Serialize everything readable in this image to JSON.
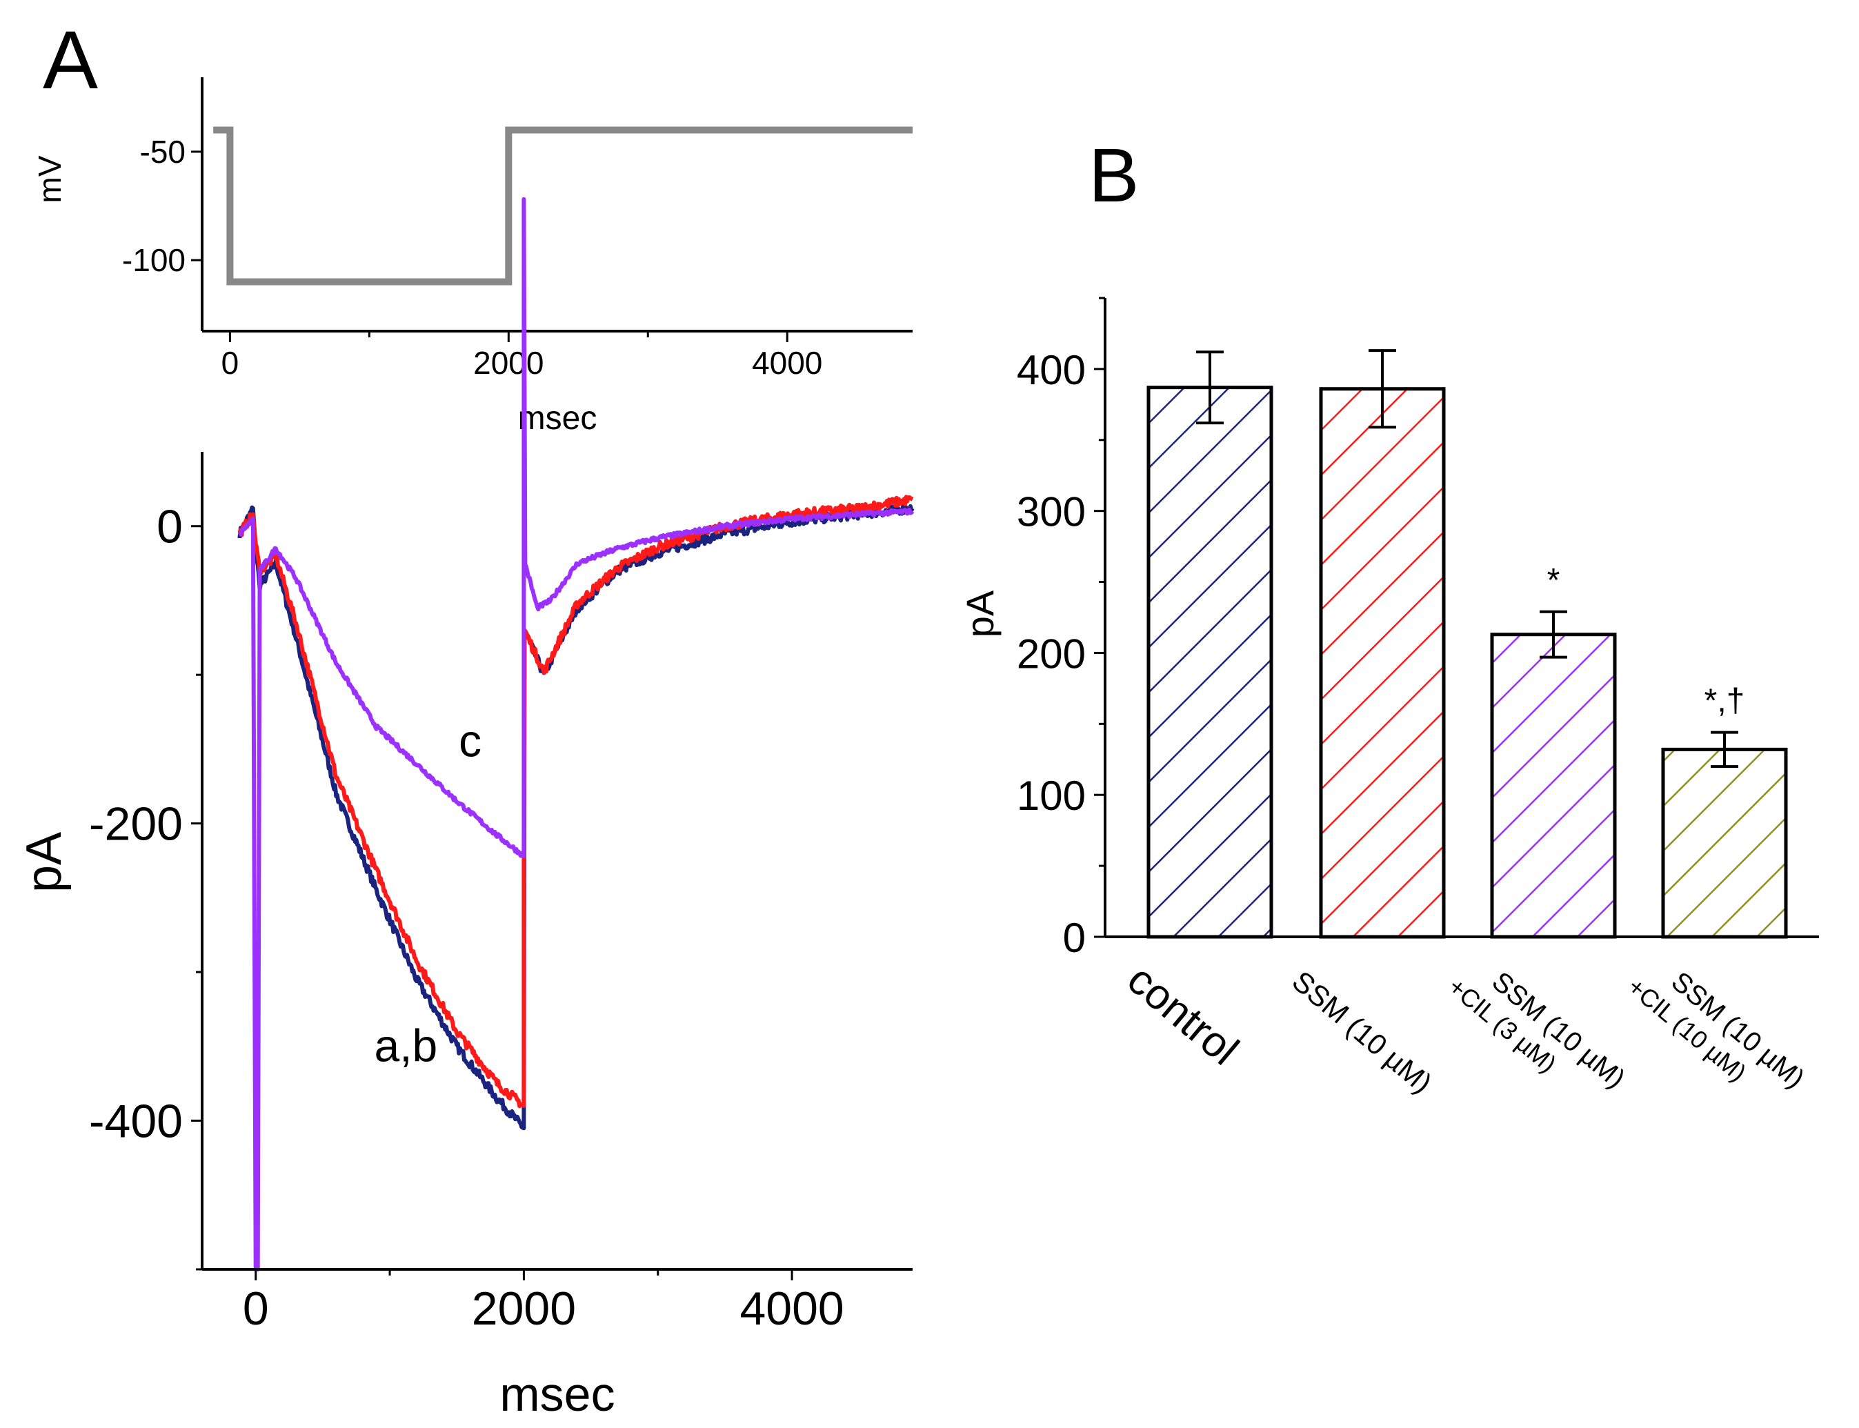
{
  "panels": {
    "a_label": "A",
    "b_label": "B"
  },
  "colors": {
    "protocol": "#888888",
    "control": "#1a237e",
    "ssm": "#ff1a1a",
    "ssm_cil3": "#9b30ff",
    "ssm_cil10": "#8f8f1f",
    "axis": "#000000"
  },
  "chart_data": [
    {
      "id": "protocol",
      "type": "line",
      "title": "",
      "xlabel": "msec",
      "ylabel": "mV",
      "xlim": [
        -200,
        4900
      ],
      "ylim": [
        -120,
        -30
      ],
      "xticks": [
        0,
        2000,
        4000
      ],
      "yticks": [
        -50,
        -100
      ],
      "series": [
        {
          "color_key": "protocol",
          "points": [
            [
              -120,
              -40
            ],
            [
              0,
              -40
            ],
            [
              0,
              -110
            ],
            [
              2000,
              -110
            ],
            [
              2000,
              -40
            ],
            [
              4900,
              -40
            ]
          ]
        }
      ]
    },
    {
      "id": "currents",
      "type": "line",
      "title": "",
      "xlabel": "msec",
      "ylabel": "pA",
      "xlim": [
        -400,
        4900
      ],
      "ylim": [
        -500,
        50
      ],
      "xticks": [
        0,
        2000,
        4000
      ],
      "yticks": [
        0,
        -200,
        -400
      ],
      "annotations": [
        {
          "text": "c",
          "x": 1600,
          "y": -155
        },
        {
          "text": "a,b",
          "x": 1120,
          "y": -360
        }
      ],
      "series": [
        {
          "label": "a",
          "color_key": "control",
          "noise": 6,
          "points": [
            [
              -120,
              -5
            ],
            [
              -20,
              12
            ],
            [
              0,
              -15
            ],
            [
              30,
              -40
            ],
            [
              150,
              -25
            ],
            [
              300,
              -75
            ],
            [
              600,
              -180
            ],
            [
              900,
              -245
            ],
            [
              1200,
              -305
            ],
            [
              1500,
              -350
            ],
            [
              1800,
              -385
            ],
            [
              2000,
              -405
            ],
            [
              2005,
              -70
            ],
            [
              2150,
              -100
            ],
            [
              2400,
              -55
            ],
            [
              2700,
              -30
            ],
            [
              3000,
              -18
            ],
            [
              3500,
              -5
            ],
            [
              4000,
              3
            ],
            [
              4500,
              8
            ],
            [
              4900,
              12
            ]
          ]
        },
        {
          "label": "b",
          "color_key": "ssm",
          "noise": 6,
          "points": [
            [
              -120,
              -5
            ],
            [
              -20,
              8
            ],
            [
              0,
              -12
            ],
            [
              30,
              -30
            ],
            [
              150,
              -20
            ],
            [
              300,
              -65
            ],
            [
              600,
              -168
            ],
            [
              900,
              -232
            ],
            [
              1200,
              -292
            ],
            [
              1500,
              -340
            ],
            [
              1800,
              -375
            ],
            [
              2000,
              -390
            ],
            [
              2000,
              -225
            ],
            [
              2005,
              -70
            ],
            [
              2150,
              -98
            ],
            [
              2400,
              -52
            ],
            [
              2700,
              -28
            ],
            [
              3000,
              -14
            ],
            [
              3500,
              0
            ],
            [
              4000,
              8
            ],
            [
              4500,
              12
            ],
            [
              4900,
              18
            ]
          ]
        },
        {
          "label": "c",
          "color_key": "ssm_cil3",
          "noise": 3,
          "points": [
            [
              -120,
              -5
            ],
            [
              -20,
              5
            ],
            [
              0,
              -500
            ],
            [
              15,
              -500
            ],
            [
              30,
              -30
            ],
            [
              150,
              -15
            ],
            [
              300,
              -35
            ],
            [
              600,
              -92
            ],
            [
              900,
              -135
            ],
            [
              1200,
              -160
            ],
            [
              1500,
              -185
            ],
            [
              1800,
              -208
            ],
            [
              2000,
              -222
            ],
            [
              2000,
              220
            ],
            [
              2010,
              -25
            ],
            [
              2100,
              -55
            ],
            [
              2200,
              -50
            ],
            [
              2400,
              -25
            ],
            [
              2700,
              -15
            ],
            [
              3000,
              -8
            ],
            [
              3500,
              0
            ],
            [
              4000,
              5
            ],
            [
              4500,
              8
            ],
            [
              4900,
              10
            ]
          ]
        }
      ]
    },
    {
      "id": "summary",
      "type": "bar",
      "title": "",
      "xlabel": "",
      "ylabel": "pA",
      "ylim": [
        0,
        450
      ],
      "yticks": [
        0,
        100,
        200,
        300,
        400
      ],
      "categories": [
        {
          "lines": [
            "control"
          ],
          "color_key": "control"
        },
        {
          "lines": [
            "SSM (10 µM)"
          ],
          "color_key": "ssm"
        },
        {
          "lines": [
            "SSM (10 µM)",
            "+CIL (3 µM)"
          ],
          "color_key": "ssm_cil3"
        },
        {
          "lines": [
            "SSM (10 µM)",
            "+CIL (10 µM)"
          ],
          "color_key": "ssm_cil10"
        }
      ],
      "values": [
        387,
        386,
        213,
        132
      ],
      "errors": [
        25,
        27,
        16,
        12
      ],
      "annotations": [
        "",
        "",
        "*",
        "*,†"
      ]
    }
  ]
}
